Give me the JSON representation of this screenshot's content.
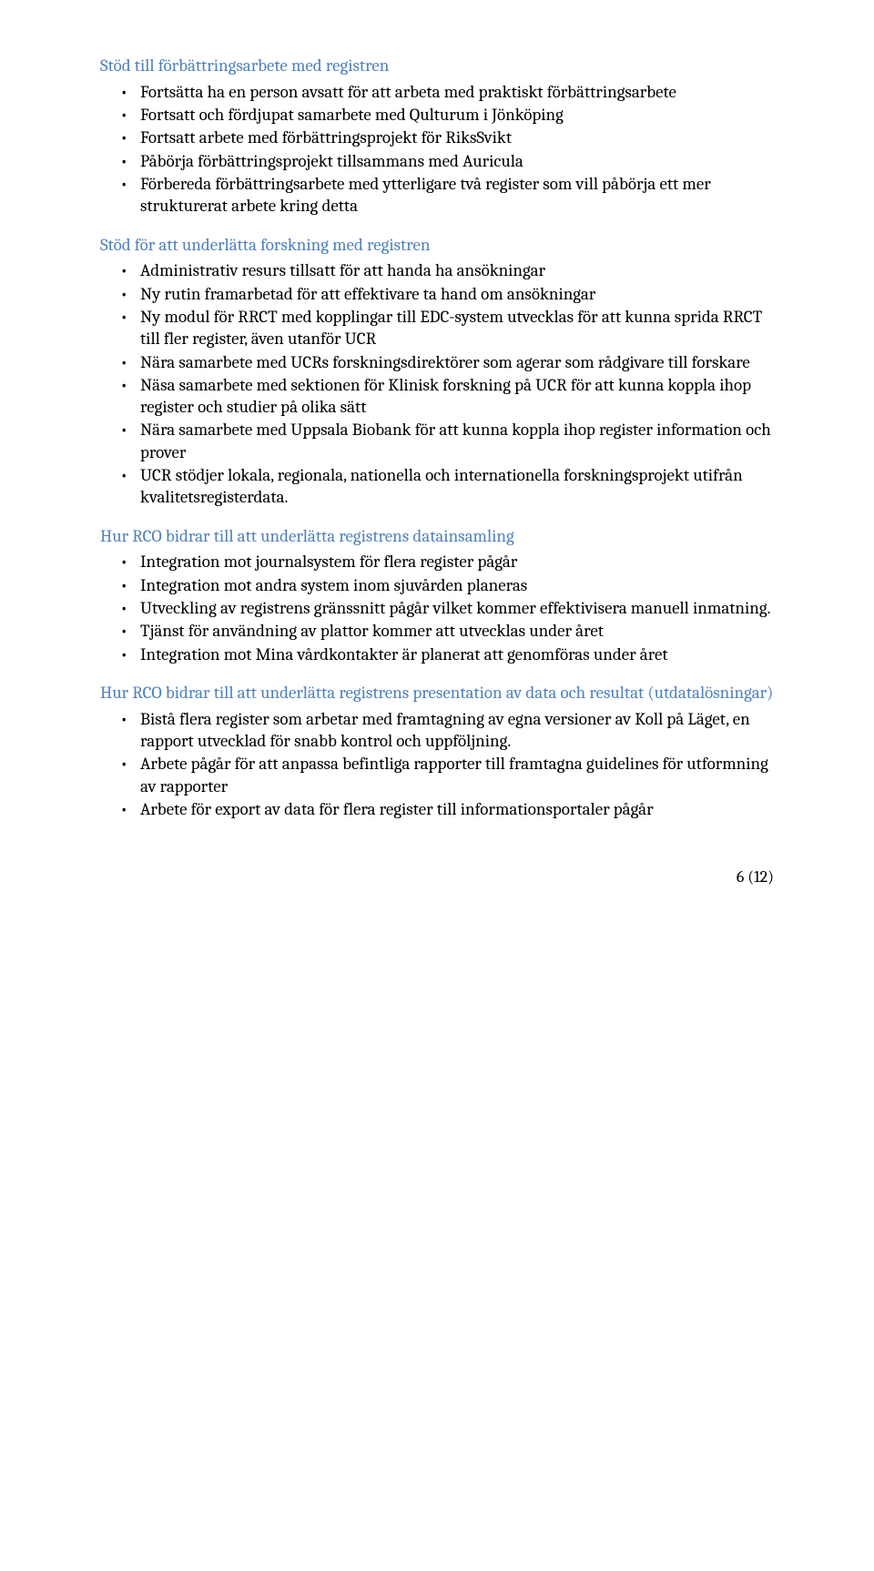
{
  "sections": [
    {
      "heading": "Stöd till förbättringsarbete med registren",
      "items": [
        "Fortsätta ha en person avsatt för att arbeta med praktiskt förbättringsarbete",
        "Fortsatt och fördjupat samarbete med Qulturum i Jönköping",
        "Fortsatt arbete med förbättringsprojekt för RiksSvikt",
        "Påbörja förbättringsprojekt tillsammans med Auricula",
        "Förbereda förbättringsarbete med ytterligare två register som vill påbörja ett mer strukturerat arbete kring detta"
      ]
    },
    {
      "heading": "Stöd för att underlätta forskning med registren",
      "items": [
        "Administrativ resurs tillsatt för att handa ha ansökningar",
        "Ny rutin framarbetad för att effektivare ta hand om ansökningar",
        "Ny modul för RRCT med kopplingar till EDC-system utvecklas för att kunna sprida RRCT till fler register, även utanför UCR",
        "Nära samarbete med UCRs forskningsdirektörer som agerar som rådgivare till forskare",
        "Näsa samarbete med sektionen för Klinisk forskning på UCR för att kunna koppla ihop register och studier på olika sätt",
        "Nära samarbete med Uppsala Biobank för att kunna koppla ihop register information och prover",
        "UCR stödjer lokala, regionala, nationella och internationella forskningsprojekt utifrån kvalitetsregisterdata."
      ]
    },
    {
      "heading": "Hur RCO bidrar till att underlätta registrens datainsamling",
      "items": [
        "Integration mot journalsystem för flera register pågår",
        "Integration mot andra system inom sjuvården planeras",
        "Utveckling av registrens gränssnitt pågår vilket kommer effektivisera manuell inmatning.",
        "Tjänst för användning av plattor kommer att utvecklas under året",
        "Integration mot Mina vårdkontakter är planerat att genomföras under året"
      ]
    },
    {
      "heading": "Hur RCO bidrar till att underlätta registrens presentation av data och resultat (utdatalösningar)",
      "items": [
        "Bistå flera register som arbetar med framtagning av egna versioner av Koll på Läget, en rapport utvecklad för snabb kontrol och uppföljning.",
        "Arbete pågår för att anpassa befintliga rapporter till framtagna guidelines för utformning av rapporter",
        "Arbete för export av data för flera register till informationsportaler pågår"
      ]
    }
  ],
  "footer": "6 (12)"
}
